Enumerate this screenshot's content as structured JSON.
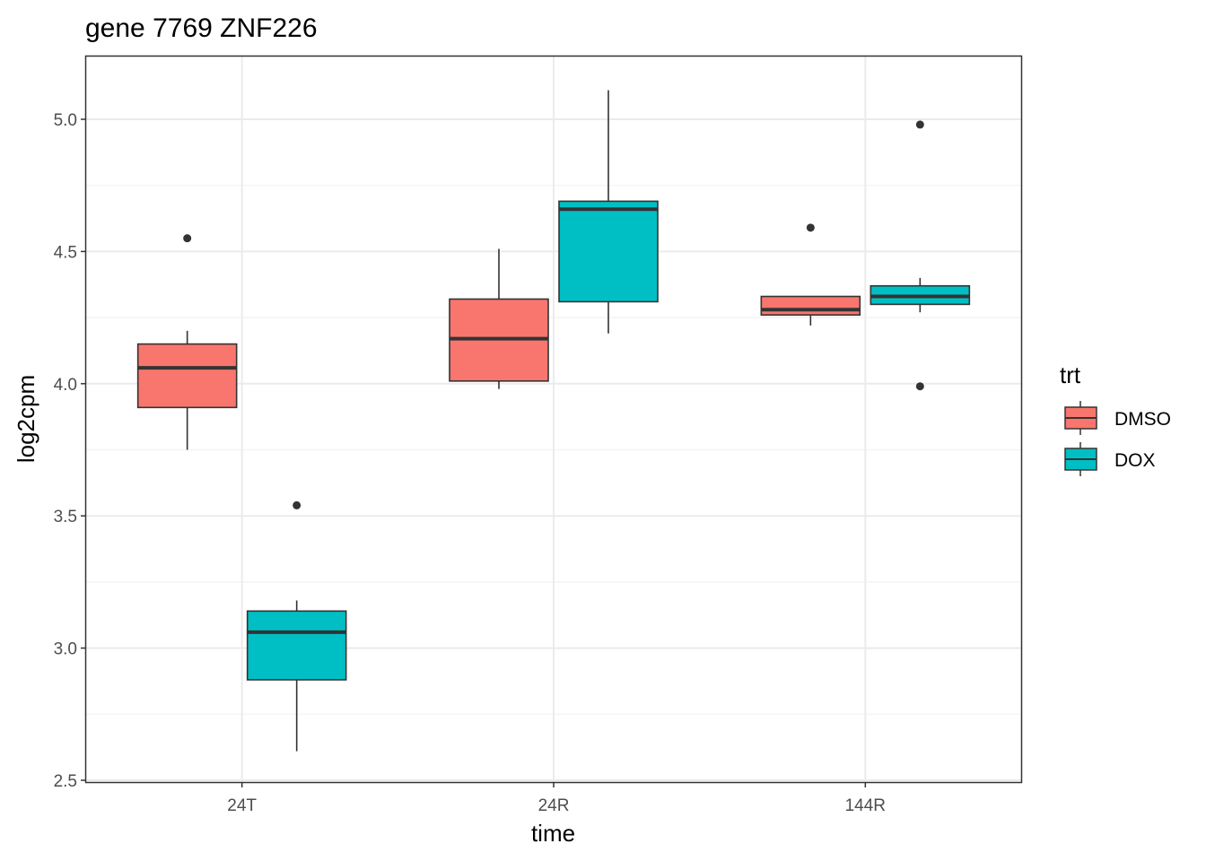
{
  "chart_data": {
    "type": "boxplot",
    "title": "gene 7769 ZNF226",
    "xlabel": "time",
    "ylabel": "log2cpm",
    "categories": [
      "24T",
      "24R",
      "144R"
    ],
    "ylim": [
      2.5,
      5.2
    ],
    "yticks": [
      "2.5",
      "3.0",
      "3.5",
      "4.0",
      "4.5",
      "5.0"
    ],
    "ytick_values": [
      2.5,
      3.0,
      3.5,
      4.0,
      4.5,
      5.0
    ],
    "grid": true,
    "legend": {
      "title": "trt",
      "placement": "right",
      "entries": [
        "DMSO",
        "DOX"
      ]
    },
    "series": [
      {
        "name": "DMSO",
        "color": "#F8766D",
        "boxes": [
          {
            "category": "24T",
            "whisker_low": 3.75,
            "q1": 3.91,
            "median": 4.06,
            "q3": 4.15,
            "whisker_high": 4.2,
            "outliers": [
              4.55
            ]
          },
          {
            "category": "24R",
            "whisker_low": 3.98,
            "q1": 4.01,
            "median": 4.17,
            "q3": 4.32,
            "whisker_high": 4.51,
            "outliers": []
          },
          {
            "category": "144R",
            "whisker_low": 4.22,
            "q1": 4.26,
            "median": 4.28,
            "q3": 4.33,
            "whisker_high": 4.33,
            "outliers": [
              4.59
            ]
          }
        ]
      },
      {
        "name": "DOX",
        "color": "#00BFC4",
        "boxes": [
          {
            "category": "24T",
            "whisker_low": 2.61,
            "q1": 2.88,
            "median": 3.06,
            "q3": 3.14,
            "whisker_high": 3.18,
            "outliers": [
              3.54
            ]
          },
          {
            "category": "24R",
            "whisker_low": 4.19,
            "q1": 4.31,
            "median": 4.66,
            "q3": 4.69,
            "whisker_high": 5.11,
            "outliers": []
          },
          {
            "category": "144R",
            "whisker_low": 4.27,
            "q1": 4.3,
            "median": 4.33,
            "q3": 4.37,
            "whisker_high": 4.4,
            "outliers": [
              4.98,
              3.99
            ]
          }
        ]
      }
    ]
  }
}
